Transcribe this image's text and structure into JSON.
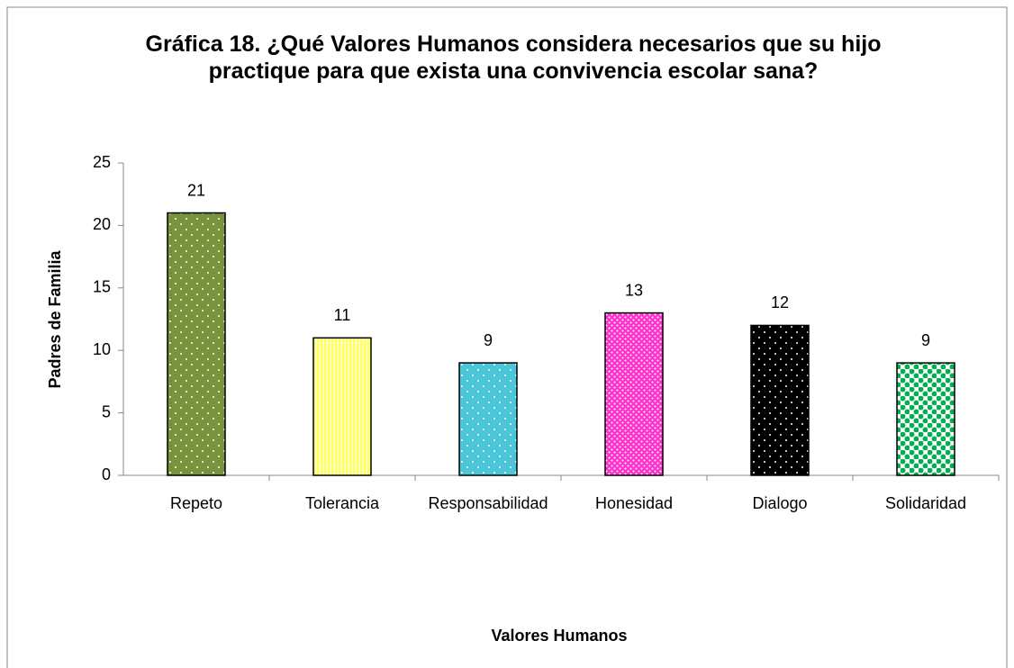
{
  "chart_data": {
    "type": "bar",
    "title": "Gráfica 18. ¿Qué Valores Humanos  considera necesarios que su hijo practique  para que exista una convivencia escolar sana?",
    "categories": [
      "Repeto",
      "Tolerancia",
      "Responsabilidad",
      "Honesidad",
      "Dialogo",
      "Solidaridad"
    ],
    "values": [
      21,
      11,
      9,
      13,
      12,
      9
    ],
    "colors": [
      "#77933c",
      "#ffff66",
      "#4bc6d8",
      "#ff33cc",
      "#000000",
      "#00b050"
    ],
    "patterns": [
      "dots",
      "vertical",
      "dots",
      "dots",
      "dots",
      "circles"
    ],
    "ylim": [
      0,
      25
    ],
    "yticks": [
      0,
      5,
      10,
      15,
      20,
      25
    ],
    "xlabel": "Valores Humanos",
    "ylabel": "Padres de Familia"
  }
}
